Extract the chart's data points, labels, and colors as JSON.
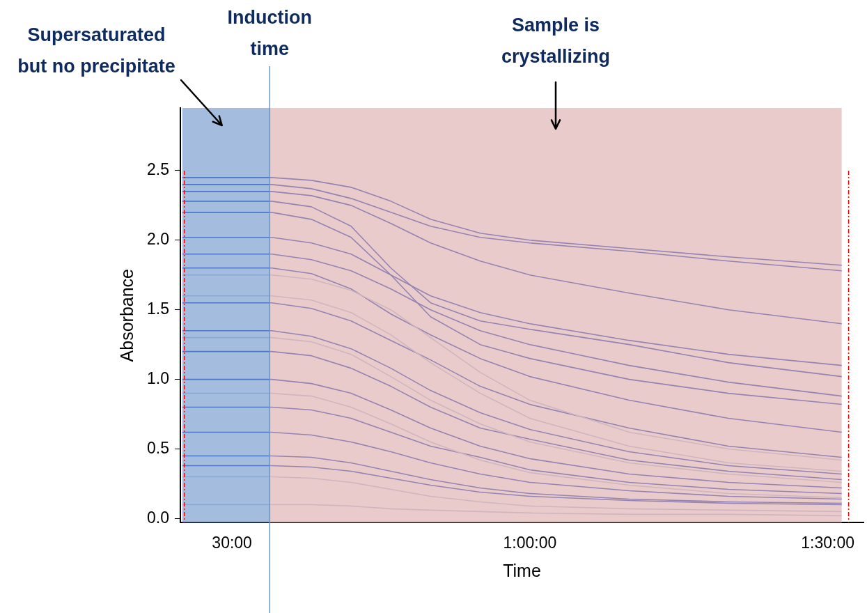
{
  "chart_data": {
    "type": "line",
    "xlabel": "Time",
    "ylabel": "Absorbance",
    "x": [
      25,
      34,
      38,
      42,
      46,
      50,
      55,
      60,
      70,
      80,
      91.4
    ],
    "xlim": [
      24.8,
      93.6
    ],
    "xticks": [
      {
        "value": 30,
        "label": "30:00"
      },
      {
        "value": 60,
        "label": "1:00:00"
      },
      {
        "value": 90,
        "label": "1:30:00"
      }
    ],
    "ylim": [
      -0.03,
      2.95
    ],
    "yticks": [
      {
        "value": 0,
        "label": "0.0"
      },
      {
        "value": 0.5,
        "label": "0.5"
      },
      {
        "value": 1,
        "label": "1.0"
      },
      {
        "value": 1.5,
        "label": "1.5"
      },
      {
        "value": 2,
        "label": "2.0"
      },
      {
        "value": 2.5,
        "label": "2.5"
      }
    ],
    "grid": false,
    "legend": false,
    "marker": "none",
    "line_style": "solid",
    "series": [
      {
        "color": "#c5cfe2",
        "values": [
          1.75,
          1.75,
          1.72,
          1.64,
          1.5,
          1.3,
          1.05,
          0.85,
          0.62,
          0.5,
          0.42
        ]
      },
      {
        "color": "#c5cfe2",
        "values": [
          1.6,
          1.6,
          1.57,
          1.48,
          1.32,
          1.12,
          0.9,
          0.72,
          0.52,
          0.4,
          0.34
        ]
      },
      {
        "color": "#c5cfe2",
        "values": [
          1.3,
          1.3,
          1.27,
          1.18,
          1.02,
          0.85,
          0.68,
          0.55,
          0.4,
          0.32,
          0.26
        ]
      },
      {
        "color": "#c5cfe2",
        "values": [
          0.9,
          0.9,
          0.88,
          0.8,
          0.68,
          0.55,
          0.42,
          0.33,
          0.24,
          0.18,
          0.15
        ]
      },
      {
        "color": "#c5cfe2",
        "values": [
          0.3,
          0.3,
          0.29,
          0.26,
          0.21,
          0.16,
          0.12,
          0.09,
          0.07,
          0.06,
          0.05
        ]
      },
      {
        "color": "#c5cfe2",
        "values": [
          0.1,
          0.1,
          0.1,
          0.09,
          0.07,
          0.06,
          0.05,
          0.04,
          0.03,
          0.03,
          0.02
        ]
      },
      {
        "color": "#4361c8",
        "values": [
          2.45,
          2.45,
          2.43,
          2.38,
          2.28,
          2.15,
          2.05,
          2,
          1.94,
          1.88,
          1.82
        ]
      },
      {
        "color": "#4361c8",
        "values": [
          2.4,
          2.4,
          2.37,
          2.3,
          2.2,
          2.1,
          2.02,
          1.98,
          1.92,
          1.85,
          1.78
        ]
      },
      {
        "color": "#4361c8",
        "values": [
          2.35,
          2.35,
          2.32,
          2.25,
          2.12,
          1.98,
          1.85,
          1.75,
          1.62,
          1.5,
          1.4
        ]
      },
      {
        "color": "#4361c8",
        "values": [
          2.28,
          2.28,
          2.24,
          2.1,
          1.8,
          1.55,
          1.42,
          1.36,
          1.25,
          1.12,
          1.02
        ]
      },
      {
        "color": "#4361c8",
        "values": [
          2.2,
          2.2,
          2.15,
          2.02,
          1.75,
          1.45,
          1.25,
          1.15,
          1,
          0.9,
          0.82
        ]
      },
      {
        "color": "#4361c8",
        "values": [
          2.02,
          2.02,
          1.98,
          1.9,
          1.75,
          1.6,
          1.48,
          1.4,
          1.28,
          1.18,
          1.1
        ]
      },
      {
        "color": "#4361c8",
        "values": [
          1.9,
          1.9,
          1.86,
          1.78,
          1.65,
          1.5,
          1.35,
          1.25,
          1.1,
          0.98,
          0.88
        ]
      },
      {
        "color": "#4361c8",
        "values": [
          1.8,
          1.8,
          1.76,
          1.65,
          1.47,
          1.32,
          1.15,
          1.02,
          0.85,
          0.72,
          0.62
        ]
      },
      {
        "color": "#4361c8",
        "values": [
          1.55,
          1.55,
          1.51,
          1.42,
          1.28,
          1.14,
          0.95,
          0.82,
          0.65,
          0.52,
          0.44
        ]
      },
      {
        "color": "#4361c8",
        "values": [
          1.35,
          1.35,
          1.31,
          1.22,
          1.08,
          0.92,
          0.76,
          0.64,
          0.48,
          0.38,
          0.32
        ]
      },
      {
        "color": "#4361c8",
        "values": [
          1.2,
          1.2,
          1.17,
          1.08,
          0.95,
          0.8,
          0.65,
          0.57,
          0.42,
          0.34,
          0.28
        ]
      },
      {
        "color": "#4361c8",
        "values": [
          1,
          1,
          0.97,
          0.9,
          0.78,
          0.65,
          0.52,
          0.43,
          0.32,
          0.26,
          0.22
        ]
      },
      {
        "color": "#4361c8",
        "values": [
          0.8,
          0.8,
          0.78,
          0.72,
          0.62,
          0.52,
          0.44,
          0.35,
          0.26,
          0.21,
          0.18
        ]
      },
      {
        "color": "#4361c8",
        "values": [
          0.62,
          0.62,
          0.6,
          0.55,
          0.48,
          0.4,
          0.32,
          0.26,
          0.2,
          0.16,
          0.14
        ]
      },
      {
        "color": "#4361c8",
        "values": [
          0.45,
          0.45,
          0.44,
          0.4,
          0.34,
          0.28,
          0.22,
          0.18,
          0.14,
          0.12,
          0.11
        ]
      },
      {
        "color": "#4361c8",
        "values": [
          0.38,
          0.38,
          0.37,
          0.34,
          0.29,
          0.24,
          0.19,
          0.16,
          0.13,
          0.11,
          0.1
        ]
      }
    ],
    "bands": [
      {
        "axis": "x",
        "from": 25,
        "to": 33.8,
        "label": "Supersaturated but no precipitate",
        "color": "#5a86c5"
      },
      {
        "axis": "x",
        "from": 33.8,
        "to": 91.4,
        "label": "Sample is crystallizing",
        "color": "#d9a0a0"
      }
    ],
    "ref_lines": [
      {
        "axis": "x",
        "value": 33.8,
        "label": "Induction time",
        "color": "#5b9bd5",
        "line_style": "solid"
      },
      {
        "axis": "x",
        "value": 25.2,
        "color": "#ff0000",
        "line_style": "dashed"
      },
      {
        "axis": "x",
        "value": 92.1,
        "color": "#ff0000",
        "line_style": "dashed"
      }
    ]
  }
}
